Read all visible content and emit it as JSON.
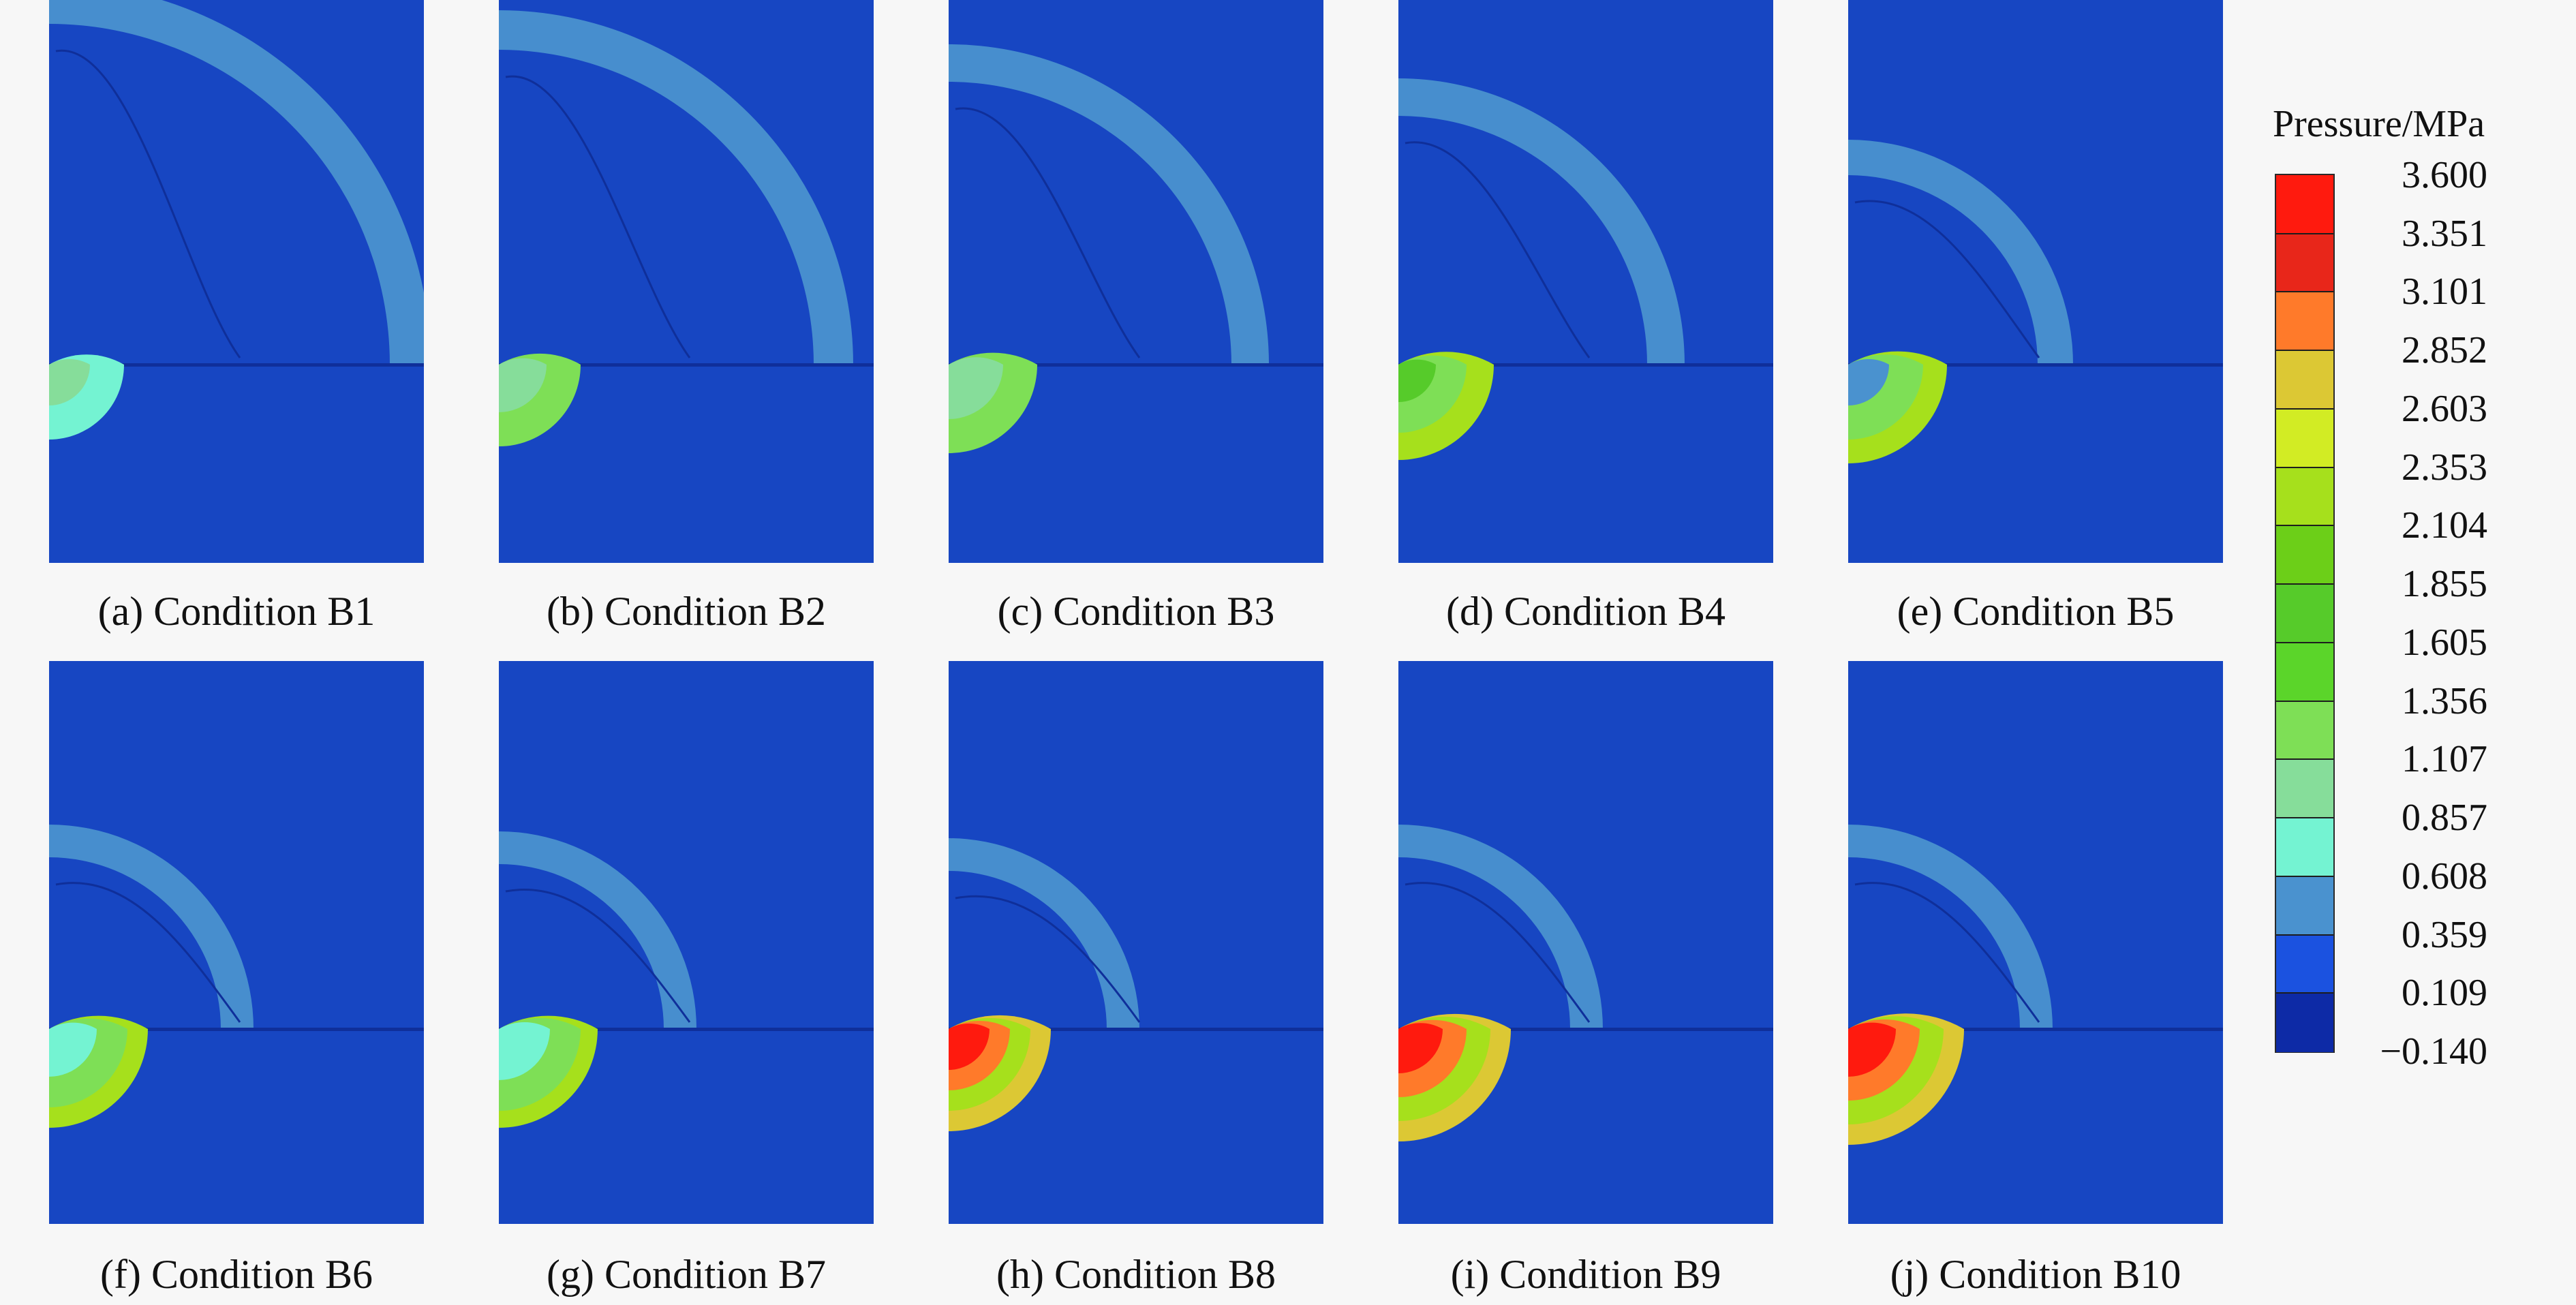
{
  "panels": [
    {
      "caption": "(a) Condition B1"
    },
    {
      "caption": "(b) Condition B2"
    },
    {
      "caption": "(c) Condition B3"
    },
    {
      "caption": "(d) Condition B4"
    },
    {
      "caption": "(e) Condition B5"
    },
    {
      "caption": "(f) Condition B6"
    },
    {
      "caption": "(g) Condition B7"
    },
    {
      "caption": "(h) Condition B8"
    },
    {
      "caption": "(i) Condition B9"
    },
    {
      "caption": "(j) Condition B10"
    }
  ],
  "legend": {
    "title": "Pressure/MPa",
    "ticks": [
      "3.600",
      "3.351",
      "3.101",
      "2.852",
      "2.603",
      "2.353",
      "2.104",
      "1.855",
      "1.605",
      "1.356",
      "1.107",
      "0.857",
      "0.608",
      "0.359",
      "0.109",
      "−0.140"
    ],
    "colors": [
      "#ff1a0e",
      "#e8261a",
      "#ff7a2a",
      "#dcc834",
      "#d2ec24",
      "#a6e01c",
      "#6ccf18",
      "#56cb2a",
      "#5bd52a",
      "#7edf56",
      "#86dd9a",
      "#74f3d2",
      "#4a92cf",
      "#1b52e0",
      "#0d2aa6"
    ]
  },
  "colors": {
    "background_field": "#1746c2"
  }
}
